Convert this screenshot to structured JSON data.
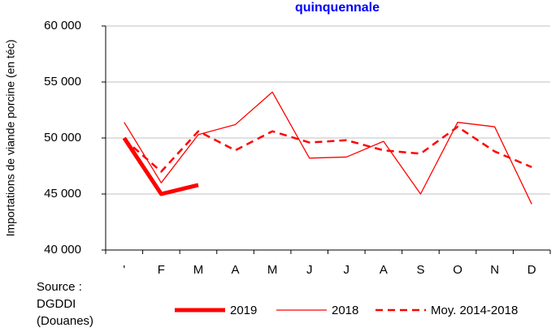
{
  "chart_data": {
    "type": "line",
    "title": "quinquennale",
    "y_label": "Importations de viande porcine (en téc)",
    "source": [
      "Source :",
      "DGDDI",
      "(Douanes)"
    ],
    "categories": [
      "'",
      "F",
      "M",
      "A",
      "M",
      "J",
      "J",
      "A",
      "S",
      "O",
      "N",
      "D"
    ],
    "ylim": [
      40000,
      60000
    ],
    "yticks": [
      {
        "value": 40000,
        "label": "40 000"
      },
      {
        "value": 45000,
        "label": "45 000"
      },
      {
        "value": 50000,
        "label": "50 000"
      },
      {
        "value": 55000,
        "label": "55 000"
      },
      {
        "value": 60000,
        "label": "60 000"
      }
    ],
    "grid": true,
    "series": [
      {
        "name": "2019",
        "color": "#ff0000",
        "style": "thick",
        "values": [
          50000,
          45000,
          45800,
          null,
          null,
          null,
          null,
          null,
          null,
          null,
          null,
          null
        ]
      },
      {
        "name": "2018",
        "color": "#ff0000",
        "style": "thin",
        "values": [
          51400,
          46000,
          50300,
          51200,
          54100,
          48200,
          48300,
          49700,
          45000,
          51400,
          51000,
          44100
        ]
      },
      {
        "name": "Moy. 2014-2018",
        "color": "#ff0000",
        "style": "dashed",
        "values": [
          49900,
          47000,
          50600,
          48900,
          50600,
          49600,
          49800,
          48900,
          48600,
          51000,
          48800,
          47400
        ]
      }
    ]
  }
}
